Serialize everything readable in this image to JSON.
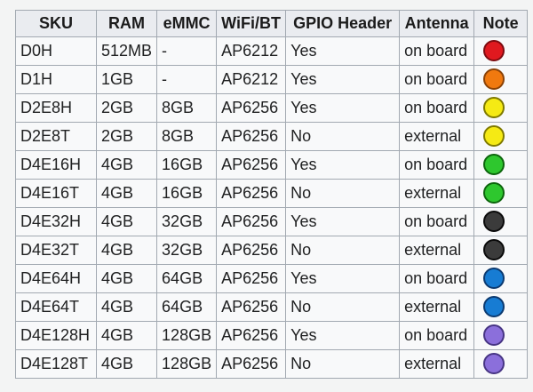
{
  "table": {
    "columns": [
      {
        "key": "sku",
        "label": "SKU"
      },
      {
        "key": "ram",
        "label": "RAM"
      },
      {
        "key": "emmc",
        "label": "eMMC"
      },
      {
        "key": "wifi",
        "label": "WiFi/BT"
      },
      {
        "key": "gpio",
        "label": "GPIO Header"
      },
      {
        "key": "antenna",
        "label": "Antenna"
      },
      {
        "key": "note",
        "label": "Note"
      }
    ],
    "rows": [
      {
        "sku": "D0H",
        "ram": "512MB",
        "emmc": "-",
        "wifi": "AP6212",
        "gpio": "Yes",
        "antenna": "on board",
        "note": "red"
      },
      {
        "sku": "D1H",
        "ram": "1GB",
        "emmc": "-",
        "wifi": "AP6212",
        "gpio": "Yes",
        "antenna": "on board",
        "note": "orange"
      },
      {
        "sku": "D2E8H",
        "ram": "2GB",
        "emmc": "8GB",
        "wifi": "AP6256",
        "gpio": "Yes",
        "antenna": "on board",
        "note": "yellow"
      },
      {
        "sku": "D2E8T",
        "ram": "2GB",
        "emmc": "8GB",
        "wifi": "AP6256",
        "gpio": "No",
        "antenna": "external",
        "note": "yellow"
      },
      {
        "sku": "D4E16H",
        "ram": "4GB",
        "emmc": "16GB",
        "wifi": "AP6256",
        "gpio": "Yes",
        "antenna": "on board",
        "note": "green"
      },
      {
        "sku": "D4E16T",
        "ram": "4GB",
        "emmc": "16GB",
        "wifi": "AP6256",
        "gpio": "No",
        "antenna": "external",
        "note": "green"
      },
      {
        "sku": "D4E32H",
        "ram": "4GB",
        "emmc": "32GB",
        "wifi": "AP6256",
        "gpio": "Yes",
        "antenna": "on board",
        "note": "black"
      },
      {
        "sku": "D4E32T",
        "ram": "4GB",
        "emmc": "32GB",
        "wifi": "AP6256",
        "gpio": "No",
        "antenna": "external",
        "note": "black"
      },
      {
        "sku": "D4E64H",
        "ram": "4GB",
        "emmc": "64GB",
        "wifi": "AP6256",
        "gpio": "Yes",
        "antenna": "on board",
        "note": "blue"
      },
      {
        "sku": "D4E64T",
        "ram": "4GB",
        "emmc": "64GB",
        "wifi": "AP6256",
        "gpio": "No",
        "antenna": "external",
        "note": "blue"
      },
      {
        "sku": "D4E128H",
        "ram": "4GB",
        "emmc": "128GB",
        "wifi": "AP6256",
        "gpio": "Yes",
        "antenna": "on board",
        "note": "purple"
      },
      {
        "sku": "D4E128T",
        "ram": "4GB",
        "emmc": "128GB",
        "wifi": "AP6256",
        "gpio": "No",
        "antenna": "external",
        "note": "purple"
      }
    ],
    "note_colors": {
      "red": {
        "fill": "#e0191f",
        "border": "#7d0b10"
      },
      "orange": {
        "fill": "#f0790f",
        "border": "#8a4207"
      },
      "yellow": {
        "fill": "#f5ea14",
        "border": "#7f7a00"
      },
      "green": {
        "fill": "#2ec72e",
        "border": "#0d650d"
      },
      "black": {
        "fill": "#3b3b3b",
        "border": "#0a0a0a"
      },
      "blue": {
        "fill": "#177cd3",
        "border": "#0c3a70"
      },
      "purple": {
        "fill": "#8b6fdb",
        "border": "#473584"
      }
    },
    "colors": {
      "border": "#a2a9b1",
      "header_bg": "#eaecf0",
      "cell_bg": "#f8f9fa",
      "text": "#202122",
      "page_bg": "#f3f4f4"
    }
  }
}
